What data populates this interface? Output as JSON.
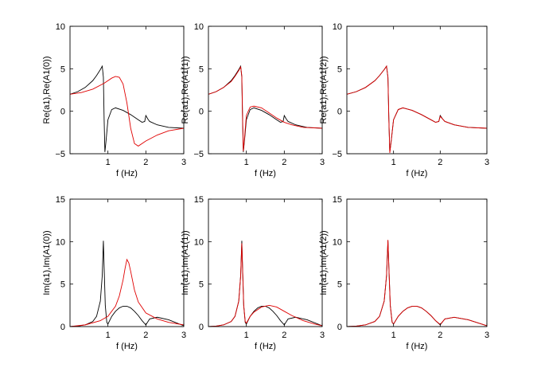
{
  "chart_data": [
    {
      "type": "line",
      "panel": "top-left",
      "xlabel": "f (Hz)",
      "ylabel": "Re(a1),Re(A1(0))",
      "xlim": [
        0,
        3
      ],
      "ylim": [
        -5,
        10
      ],
      "xticks": [
        1,
        2,
        3
      ],
      "yticks": [
        -5,
        0,
        5,
        10
      ],
      "series": [
        {
          "name": "Re(a1)",
          "color": "#000000",
          "x": [
            0,
            0.2,
            0.4,
            0.6,
            0.7,
            0.8,
            0.85,
            0.88,
            0.9,
            0.92,
            0.95,
            1.0,
            1.1,
            1.2,
            1.4,
            1.6,
            1.8,
            1.9,
            1.97,
            2.0,
            2.05,
            2.1,
            2.3,
            2.6,
            3.0
          ],
          "y": [
            2.0,
            2.3,
            2.8,
            3.6,
            4.2,
            4.9,
            5.3,
            4.0,
            -1.0,
            -4.8,
            -3.5,
            -1.0,
            0.2,
            0.4,
            0.1,
            -0.4,
            -1.0,
            -1.3,
            -1.2,
            -0.5,
            -0.9,
            -1.2,
            -1.6,
            -1.9,
            -2.0
          ]
        },
        {
          "name": "Re(A1(0))",
          "color": "#e00000",
          "x": [
            0,
            0.3,
            0.6,
            0.9,
            1.1,
            1.2,
            1.3,
            1.4,
            1.5,
            1.6,
            1.7,
            1.8,
            2.0,
            2.3,
            2.6,
            3.0
          ],
          "y": [
            2.0,
            2.2,
            2.6,
            3.3,
            3.9,
            4.1,
            4.0,
            3.2,
            1.0,
            -2.0,
            -3.8,
            -4.1,
            -3.5,
            -2.8,
            -2.3,
            -2.0
          ]
        }
      ]
    },
    {
      "type": "line",
      "panel": "top-middle",
      "xlabel": "f (Hz)",
      "ylabel": "Re(a1),Re(A1(1))",
      "xlim": [
        0,
        3
      ],
      "ylim": [
        -5,
        10
      ],
      "xticks": [
        1,
        2,
        3
      ],
      "yticks": [
        -5,
        0,
        5,
        10
      ],
      "series": [
        {
          "name": "Re(a1)",
          "color": "#000000",
          "x": [
            0,
            0.2,
            0.4,
            0.6,
            0.7,
            0.8,
            0.85,
            0.88,
            0.9,
            0.92,
            0.95,
            1.0,
            1.1,
            1.2,
            1.4,
            1.6,
            1.8,
            1.9,
            1.97,
            2.0,
            2.05,
            2.1,
            2.3,
            2.6,
            3.0
          ],
          "y": [
            2.0,
            2.3,
            2.8,
            3.6,
            4.2,
            4.9,
            5.3,
            4.0,
            -1.0,
            -4.8,
            -3.5,
            -1.0,
            0.2,
            0.4,
            0.1,
            -0.4,
            -1.0,
            -1.3,
            -1.2,
            -0.5,
            -0.9,
            -1.2,
            -1.6,
            -1.9,
            -2.0
          ]
        },
        {
          "name": "Re(A1(1))",
          "color": "#e00000",
          "x": [
            0,
            0.2,
            0.4,
            0.6,
            0.7,
            0.8,
            0.85,
            0.88,
            0.9,
            0.92,
            0.95,
            1.0,
            1.1,
            1.2,
            1.4,
            1.6,
            1.8,
            2.0,
            2.2,
            2.5,
            3.0
          ],
          "y": [
            2.0,
            2.3,
            2.8,
            3.5,
            4.1,
            4.8,
            5.2,
            4.2,
            -0.5,
            -4.7,
            -3.2,
            -0.5,
            0.5,
            0.6,
            0.4,
            -0.2,
            -0.8,
            -1.3,
            -1.6,
            -1.9,
            -2.0
          ]
        }
      ]
    },
    {
      "type": "line",
      "panel": "top-right",
      "xlabel": "f (Hz)",
      "ylabel": "Re(a1),Re(A1(2))",
      "xlim": [
        0,
        3
      ],
      "ylim": [
        -5,
        10
      ],
      "xticks": [
        1,
        2,
        3
      ],
      "yticks": [
        -5,
        0,
        5,
        10
      ],
      "series": [
        {
          "name": "Re(a1)",
          "color": "#000000",
          "x": [
            0,
            0.2,
            0.4,
            0.6,
            0.7,
            0.8,
            0.85,
            0.88,
            0.9,
            0.92,
            0.95,
            1.0,
            1.1,
            1.2,
            1.4,
            1.6,
            1.8,
            1.9,
            1.97,
            2.0,
            2.05,
            2.1,
            2.3,
            2.6,
            3.0
          ],
          "y": [
            2.0,
            2.3,
            2.8,
            3.6,
            4.2,
            4.9,
            5.3,
            4.0,
            -1.0,
            -4.8,
            -3.5,
            -1.0,
            0.2,
            0.4,
            0.1,
            -0.4,
            -1.0,
            -1.3,
            -1.2,
            -0.5,
            -0.9,
            -1.2,
            -1.6,
            -1.9,
            -2.0
          ]
        },
        {
          "name": "Re(A1(2))",
          "color": "#e00000",
          "x": [
            0,
            0.2,
            0.4,
            0.6,
            0.7,
            0.8,
            0.85,
            0.88,
            0.9,
            0.92,
            0.95,
            1.0,
            1.1,
            1.2,
            1.4,
            1.6,
            1.8,
            1.9,
            1.97,
            2.0,
            2.05,
            2.1,
            2.3,
            2.6,
            3.0
          ],
          "y": [
            2.0,
            2.3,
            2.8,
            3.6,
            4.2,
            4.9,
            5.3,
            4.0,
            -1.0,
            -4.9,
            -3.5,
            -1.0,
            0.2,
            0.4,
            0.1,
            -0.4,
            -1.0,
            -1.3,
            -1.2,
            -0.6,
            -0.9,
            -1.2,
            -1.6,
            -1.9,
            -2.0
          ]
        }
      ]
    },
    {
      "type": "line",
      "panel": "bottom-left",
      "xlabel": "f (Hz)",
      "ylabel": "Im(a1),Im(A1(0))",
      "xlim": [
        0,
        3
      ],
      "ylim": [
        0,
        15
      ],
      "xticks": [
        1,
        2,
        3
      ],
      "yticks": [
        0,
        5,
        10,
        15
      ],
      "series": [
        {
          "name": "Im(a1)",
          "color": "#000000",
          "x": [
            0,
            0.2,
            0.4,
            0.6,
            0.7,
            0.8,
            0.85,
            0.88,
            0.9,
            0.93,
            0.97,
            1.0,
            1.1,
            1.2,
            1.3,
            1.4,
            1.5,
            1.6,
            1.7,
            1.8,
            1.9,
            2.0,
            2.1,
            2.3,
            2.6,
            3.0
          ],
          "y": [
            0,
            0.05,
            0.2,
            0.6,
            1.2,
            3.0,
            6.0,
            10.1,
            7.0,
            2.5,
            0.5,
            0.3,
            1.2,
            1.8,
            2.2,
            2.4,
            2.4,
            2.2,
            1.8,
            1.3,
            0.7,
            0.2,
            0.9,
            1.1,
            0.8,
            0.1
          ]
        },
        {
          "name": "Im(A1(0))",
          "color": "#e00000",
          "x": [
            0,
            0.4,
            0.8,
            1.0,
            1.2,
            1.3,
            1.4,
            1.45,
            1.5,
            1.55,
            1.6,
            1.7,
            1.8,
            2.0,
            2.3,
            2.6,
            3.0
          ],
          "y": [
            0,
            0.2,
            0.7,
            1.2,
            2.4,
            3.6,
            5.5,
            6.8,
            7.9,
            7.5,
            6.5,
            4.3,
            2.9,
            1.6,
            0.9,
            0.5,
            0.2
          ]
        }
      ]
    },
    {
      "type": "line",
      "panel": "bottom-middle",
      "xlabel": "f (Hz)",
      "ylabel": "Im(a1),Im(A1(1))",
      "xlim": [
        0,
        3
      ],
      "ylim": [
        0,
        15
      ],
      "xticks": [
        1,
        2,
        3
      ],
      "yticks": [
        0,
        5,
        10,
        15
      ],
      "series": [
        {
          "name": "Im(a1)",
          "color": "#000000",
          "x": [
            0,
            0.2,
            0.4,
            0.6,
            0.7,
            0.8,
            0.85,
            0.88,
            0.9,
            0.93,
            0.97,
            1.0,
            1.1,
            1.2,
            1.3,
            1.4,
            1.5,
            1.6,
            1.7,
            1.8,
            1.9,
            2.0,
            2.1,
            2.3,
            2.6,
            3.0
          ],
          "y": [
            0,
            0.05,
            0.2,
            0.6,
            1.2,
            3.0,
            6.0,
            10.1,
            7.0,
            2.5,
            0.5,
            0.3,
            1.2,
            1.8,
            2.2,
            2.4,
            2.4,
            2.2,
            1.8,
            1.3,
            0.7,
            0.2,
            0.9,
            1.1,
            0.8,
            0.1
          ]
        },
        {
          "name": "Im(A1(1))",
          "color": "#e00000",
          "x": [
            0,
            0.2,
            0.4,
            0.6,
            0.7,
            0.8,
            0.85,
            0.88,
            0.9,
            0.93,
            0.97,
            1.0,
            1.1,
            1.2,
            1.4,
            1.6,
            1.8,
            2.0,
            2.2,
            2.5,
            2.8,
            3.0
          ],
          "y": [
            0,
            0.05,
            0.2,
            0.6,
            1.2,
            3.0,
            6.0,
            9.8,
            6.8,
            2.5,
            0.6,
            0.4,
            1.2,
            1.7,
            2.3,
            2.5,
            2.3,
            1.8,
            1.3,
            0.7,
            0.3,
            0.1
          ]
        }
      ]
    },
    {
      "type": "line",
      "panel": "bottom-right",
      "xlabel": "f (Hz)",
      "ylabel": "Im(a1),Im(A1(2))",
      "xlim": [
        0,
        3
      ],
      "ylim": [
        0,
        15
      ],
      "xticks": [
        1,
        2,
        3
      ],
      "yticks": [
        0,
        5,
        10,
        15
      ],
      "series": [
        {
          "name": "Im(a1)",
          "color": "#000000",
          "x": [
            0,
            0.2,
            0.4,
            0.6,
            0.7,
            0.8,
            0.85,
            0.88,
            0.9,
            0.93,
            0.97,
            1.0,
            1.1,
            1.2,
            1.3,
            1.4,
            1.5,
            1.6,
            1.7,
            1.8,
            1.9,
            2.0,
            2.1,
            2.3,
            2.6,
            3.0
          ],
          "y": [
            0,
            0.05,
            0.2,
            0.6,
            1.2,
            3.0,
            6.0,
            10.1,
            7.0,
            2.5,
            0.5,
            0.3,
            1.2,
            1.8,
            2.2,
            2.4,
            2.4,
            2.2,
            1.8,
            1.3,
            0.7,
            0.2,
            0.9,
            1.1,
            0.8,
            0.1
          ]
        },
        {
          "name": "Im(A1(2))",
          "color": "#e00000",
          "x": [
            0,
            0.2,
            0.4,
            0.6,
            0.7,
            0.8,
            0.85,
            0.88,
            0.9,
            0.93,
            0.97,
            1.0,
            1.1,
            1.2,
            1.3,
            1.4,
            1.5,
            1.6,
            1.7,
            1.8,
            1.9,
            2.0,
            2.1,
            2.3,
            2.6,
            3.0
          ],
          "y": [
            0,
            0.05,
            0.2,
            0.6,
            1.2,
            3.0,
            6.0,
            10.2,
            7.0,
            2.5,
            0.5,
            0.3,
            1.2,
            1.8,
            2.2,
            2.4,
            2.4,
            2.2,
            1.8,
            1.3,
            0.7,
            0.25,
            0.9,
            1.1,
            0.8,
            0.1
          ]
        }
      ]
    }
  ]
}
